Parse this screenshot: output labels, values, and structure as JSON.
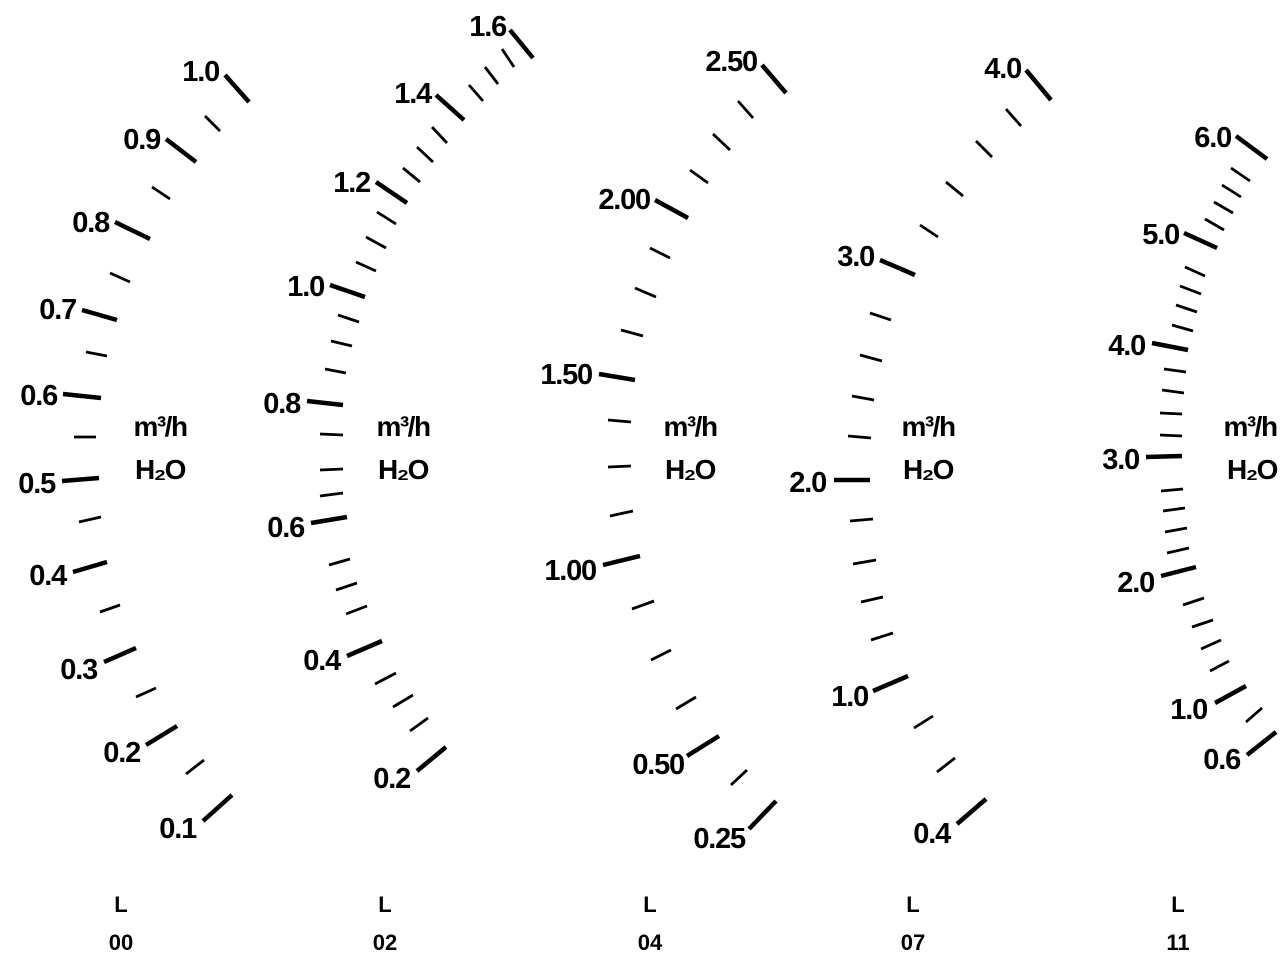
{
  "scales": [
    {
      "id": "l00",
      "flow_unit": "m³/h",
      "medium": "H₂O",
      "series_letter": "L",
      "series_code": "00",
      "scale_labels": [
        "0.1",
        "0.2",
        "0.3",
        "0.4",
        "0.5",
        "0.6",
        "0.7",
        "0.8",
        "0.9",
        "1.0"
      ]
    },
    {
      "id": "l02",
      "flow_unit": "m³/h",
      "medium": "H₂O",
      "series_letter": "L",
      "series_code": "02",
      "scale_labels": [
        "0.2",
        "0.4",
        "0.6",
        "0.8",
        "1.0",
        "1.2",
        "1.4",
        "1.6"
      ]
    },
    {
      "id": "l04",
      "flow_unit": "m³/h",
      "medium": "H₂O",
      "series_letter": "L",
      "series_code": "04",
      "scale_labels": [
        "0.25",
        "0.50",
        "1.00",
        "1.50",
        "2.00",
        "2.50"
      ]
    },
    {
      "id": "l07",
      "flow_unit": "m³/h",
      "medium": "H₂O",
      "series_letter": "L",
      "series_code": "07",
      "scale_labels": [
        "0.4",
        "1.0",
        "2.0",
        "3.0",
        "4.0"
      ]
    },
    {
      "id": "l11",
      "flow_unit": "m³/h",
      "medium": "H₂O",
      "series_letter": "L",
      "series_code": "11",
      "scale_labels": [
        "0.6",
        "1.0",
        "2.0",
        "3.0",
        "4.0",
        "5.0",
        "6.0"
      ]
    }
  ]
}
